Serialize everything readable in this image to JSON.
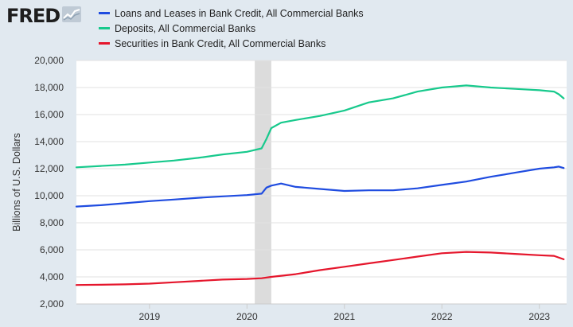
{
  "logo": {
    "text": "FRED",
    "icon": "line-chart-icon"
  },
  "chart_data": {
    "type": "line",
    "title": "",
    "xlabel": "",
    "ylabel": "Billions of U.S. Dollars",
    "ylim": [
      2000,
      20000
    ],
    "xlim": [
      2018.25,
      2023.28
    ],
    "y_ticks": [
      2000,
      4000,
      6000,
      8000,
      10000,
      12000,
      14000,
      16000,
      18000,
      20000
    ],
    "y_tick_labels": [
      "2,000",
      "4,000",
      "6,000",
      "8,000",
      "10,000",
      "12,000",
      "14,000",
      "16,000",
      "18,000",
      "20,000"
    ],
    "x_ticks": [
      2019,
      2020,
      2021,
      2022,
      2023
    ],
    "x_tick_labels": [
      "2019",
      "2020",
      "2021",
      "2022",
      "2023"
    ],
    "grid": true,
    "legend_position": "top",
    "recession_shading": [
      2020.08,
      2020.25
    ],
    "series": [
      {
        "name": "Loans and Leases in Bank Credit, All Commercial Banks",
        "color": "#1f4ce0",
        "x": [
          2018.25,
          2018.5,
          2018.75,
          2019.0,
          2019.25,
          2019.5,
          2019.75,
          2020.0,
          2020.15,
          2020.2,
          2020.25,
          2020.35,
          2020.5,
          2020.75,
          2021.0,
          2021.25,
          2021.5,
          2021.75,
          2022.0,
          2022.25,
          2022.5,
          2022.75,
          2023.0,
          2023.15,
          2023.2,
          2023.25
        ],
        "y": [
          9200,
          9300,
          9450,
          9600,
          9720,
          9850,
          9950,
          10050,
          10150,
          10600,
          10750,
          10900,
          10650,
          10500,
          10350,
          10400,
          10400,
          10550,
          10800,
          11050,
          11400,
          11700,
          12000,
          12100,
          12150,
          12050
        ]
      },
      {
        "name": "Deposits, All Commercial Banks",
        "color": "#17c98c",
        "x": [
          2018.25,
          2018.5,
          2018.75,
          2019.0,
          2019.25,
          2019.5,
          2019.75,
          2020.0,
          2020.15,
          2020.2,
          2020.25,
          2020.35,
          2020.5,
          2020.75,
          2021.0,
          2021.25,
          2021.5,
          2021.75,
          2022.0,
          2022.25,
          2022.5,
          2022.75,
          2023.0,
          2023.15,
          2023.2,
          2023.25
        ],
        "y": [
          12100,
          12200,
          12300,
          12450,
          12600,
          12800,
          13050,
          13250,
          13500,
          14200,
          15000,
          15400,
          15600,
          15900,
          16300,
          16900,
          17200,
          17700,
          18000,
          18150,
          18000,
          17900,
          17800,
          17700,
          17500,
          17200
        ]
      },
      {
        "name": "Securities in Bank Credit, All Commercial Banks",
        "color": "#e5162c",
        "x": [
          2018.25,
          2018.5,
          2018.75,
          2019.0,
          2019.25,
          2019.5,
          2019.75,
          2020.0,
          2020.15,
          2020.25,
          2020.5,
          2020.75,
          2021.0,
          2021.25,
          2021.5,
          2021.75,
          2022.0,
          2022.25,
          2022.5,
          2022.75,
          2023.0,
          2023.15,
          2023.25
        ],
        "y": [
          3400,
          3420,
          3450,
          3500,
          3600,
          3700,
          3800,
          3850,
          3900,
          4000,
          4200,
          4500,
          4750,
          5000,
          5250,
          5500,
          5750,
          5850,
          5800,
          5700,
          5600,
          5550,
          5300
        ]
      }
    ]
  }
}
